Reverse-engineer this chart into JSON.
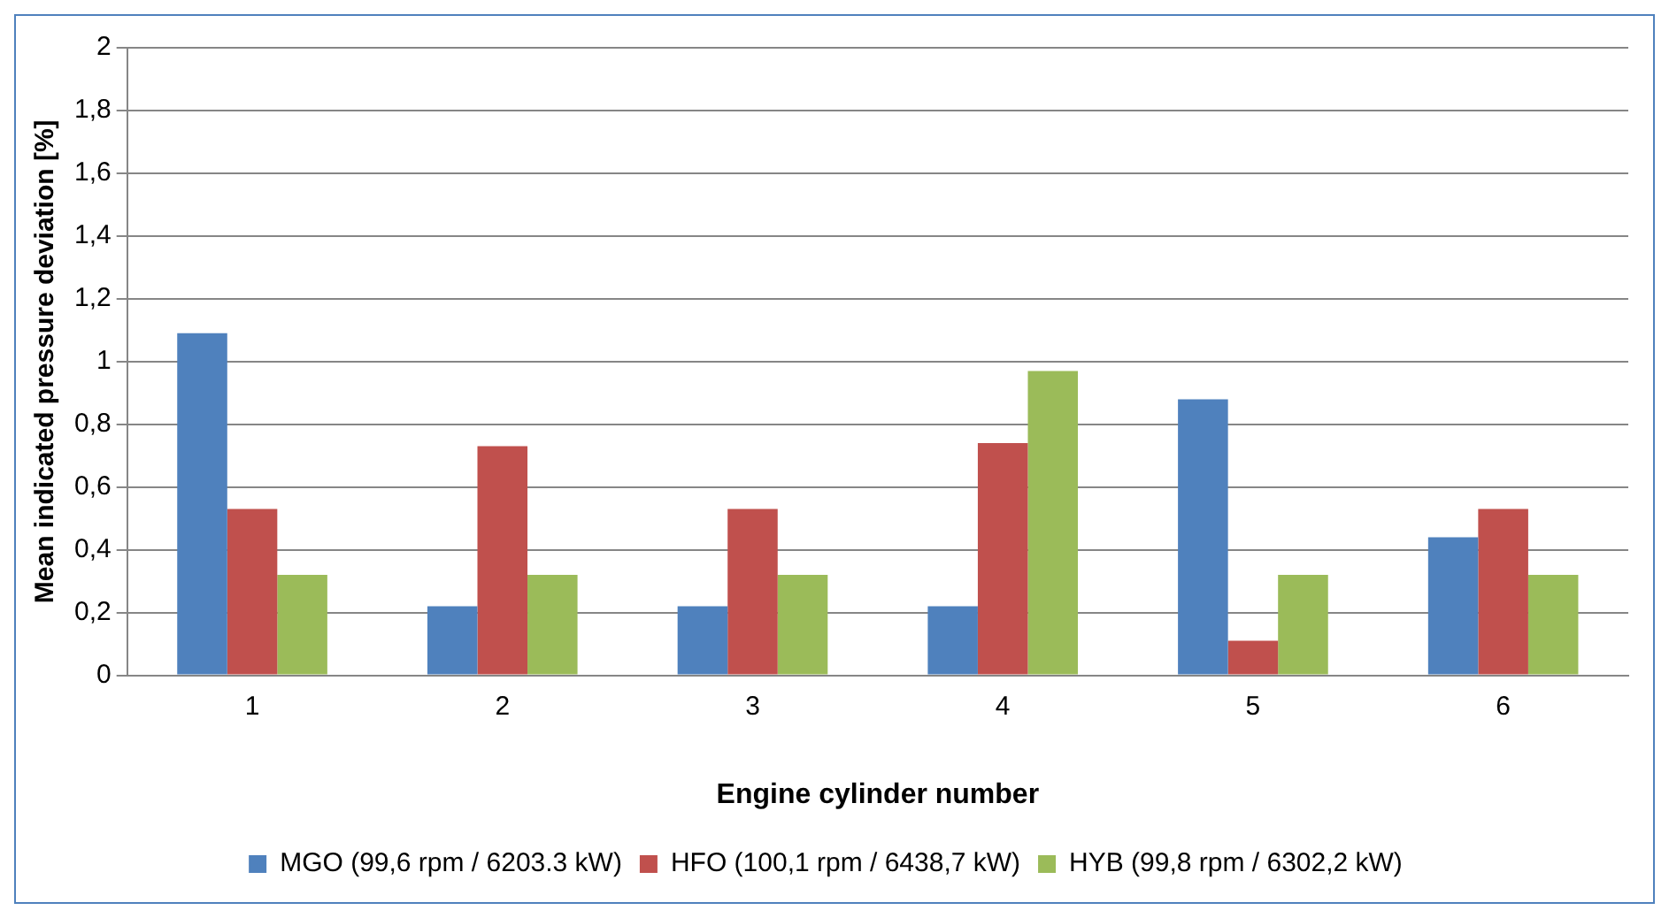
{
  "chart_data": {
    "type": "bar",
    "xlabel": "Engine cylinder number",
    "ylabel": "Mean indicated pressure deviation [%]",
    "categories": [
      "1",
      "2",
      "3",
      "4",
      "5",
      "6"
    ],
    "series": [
      {
        "name": "MGO (99,6 rpm / 6203.3 kW)",
        "color": "#4f81bd",
        "values": [
          1.09,
          0.22,
          0.22,
          0.22,
          0.88,
          0.44
        ]
      },
      {
        "name": "HFO (100,1 rpm / 6438,7 kW)",
        "color": "#c0504d",
        "values": [
          0.53,
          0.73,
          0.53,
          0.74,
          0.11,
          0.53
        ]
      },
      {
        "name": "HYB (99,8 rpm / 6302,2 kW)",
        "color": "#9bbb59",
        "values": [
          0.32,
          0.32,
          0.32,
          0.97,
          0.32,
          0.32
        ]
      }
    ],
    "ylim": [
      0,
      2
    ],
    "yticks": [
      0,
      {
        "value": 0.2,
        "label": "0,2"
      },
      {
        "value": 0.4,
        "label": "0,4"
      },
      {
        "value": 0.6,
        "label": "0,6"
      },
      {
        "value": 0.8,
        "label": "0,8"
      },
      1,
      {
        "value": 1.2,
        "label": "1,2"
      },
      {
        "value": 1.4,
        "label": "1,4"
      },
      {
        "value": 1.6,
        "label": "1,6"
      },
      {
        "value": 1.8,
        "label": "1,8"
      },
      2
    ],
    "grid": "y",
    "legend": "bottom"
  }
}
